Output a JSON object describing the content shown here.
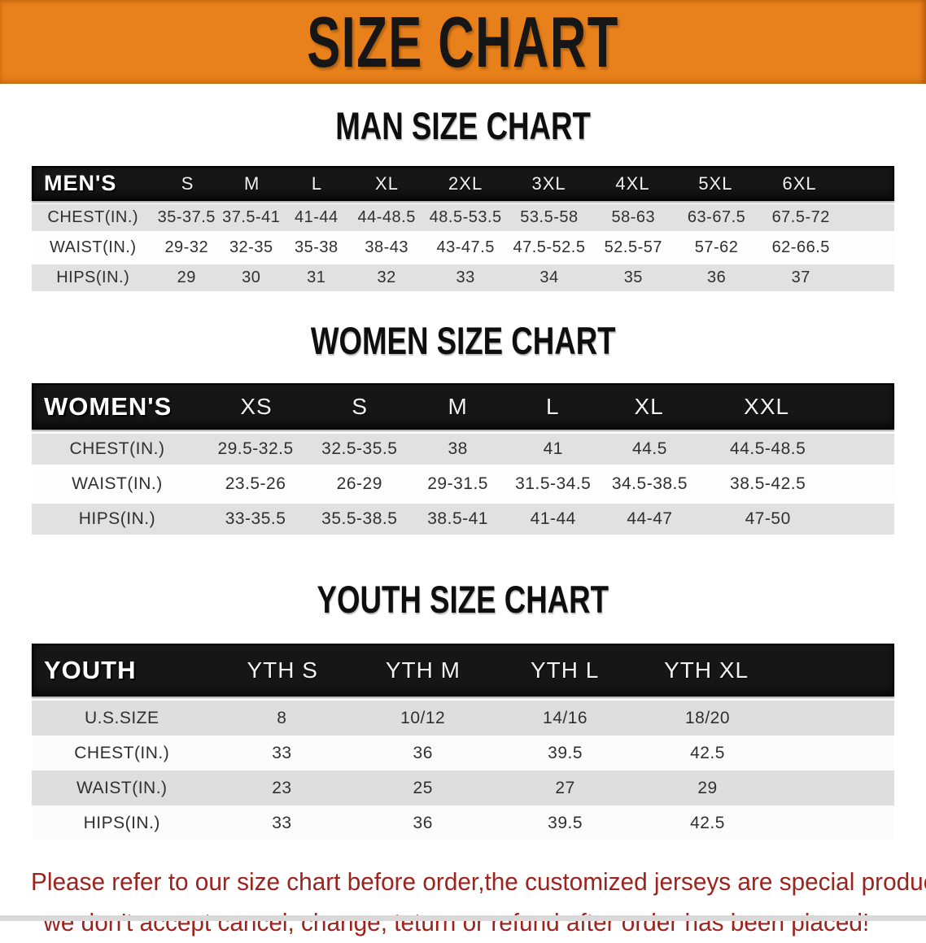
{
  "banner": {
    "title": "SIZE CHART",
    "bg_color": "#e8811b",
    "text_color": "#161616"
  },
  "sections": [
    {
      "key": "men",
      "title": "MAN SIZE CHART",
      "header_label": "MEN'S",
      "columns": [
        "S",
        "M",
        "L",
        "XL",
        "2XL",
        "3XL",
        "4XL",
        "5XL",
        "6XL"
      ],
      "rows": [
        {
          "label": "CHEST(IN.)",
          "values": [
            "35-37.5",
            "37.5-41",
            "41-44",
            "44-48.5",
            "48.5-53.5",
            "53.5-58",
            "58-63",
            "63-67.5",
            "67.5-72"
          ]
        },
        {
          "label": "WAIST(IN.)",
          "values": [
            "29-32",
            "32-35",
            "35-38",
            "38-43",
            "43-47.5",
            "47.5-52.5",
            "52.5-57",
            "57-62",
            "62-66.5"
          ]
        },
        {
          "label": "HIPS(IN.)",
          "values": [
            "29",
            "30",
            "31",
            "32",
            "33",
            "34",
            "35",
            "36",
            "37"
          ]
        }
      ]
    },
    {
      "key": "women",
      "title": "WOMEN SIZE CHART",
      "header_label": "WOMEN'S",
      "columns": [
        "XS",
        "S",
        "M",
        "L",
        "XL",
        "XXL"
      ],
      "rows": [
        {
          "label": "CHEST(IN.)",
          "values": [
            "29.5-32.5",
            "32.5-35.5",
            "38",
            "41",
            "44.5",
            "44.5-48.5"
          ]
        },
        {
          "label": "WAIST(IN.)",
          "values": [
            "23.5-26",
            "26-29",
            "29-31.5",
            "31.5-34.5",
            "34.5-38.5",
            "38.5-42.5"
          ]
        },
        {
          "label": "HIPS(IN.)",
          "values": [
            "33-35.5",
            "35.5-38.5",
            "38.5-41",
            "41-44",
            "44-47",
            "47-50"
          ]
        }
      ]
    },
    {
      "key": "youth",
      "title": "YOUTH SIZE CHART",
      "header_label": "YOUTH",
      "columns": [
        "YTH S",
        "YTH M",
        "YTH L",
        "YTH XL"
      ],
      "rows": [
        {
          "label": "U.S.SIZE",
          "values": [
            "8",
            "10/12",
            "14/16",
            "18/20"
          ]
        },
        {
          "label": "CHEST(IN.)",
          "values": [
            "33",
            "36",
            "39.5",
            "42.5"
          ]
        },
        {
          "label": "WAIST(IN.)",
          "values": [
            "23",
            "25",
            "27",
            "29"
          ]
        },
        {
          "label": "HIPS(IN.)",
          "values": [
            "33",
            "36",
            "39.5",
            "42.5"
          ]
        }
      ]
    }
  ],
  "disclaimer": {
    "line1": "Please refer to our size chart before order,the customized jerseys are special products,",
    "line2": "we don't accept cancel, change, teturn or refund after order has been placed!",
    "color": "#9b241e"
  }
}
